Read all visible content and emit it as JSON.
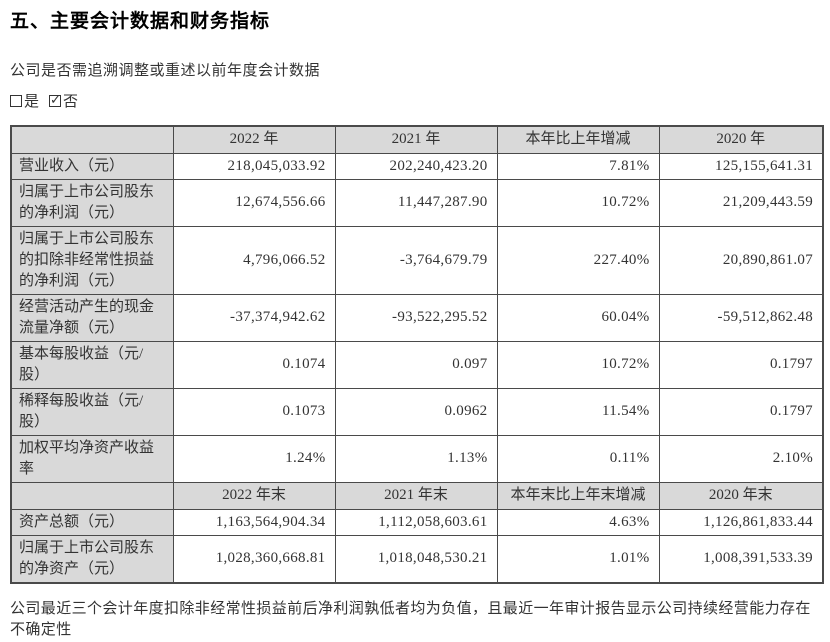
{
  "document": {
    "title": "五、主要会计数据和财务指标",
    "restatement_question": "公司是否需追溯调整或重述以前年度会计数据",
    "checkboxes": [
      {
        "label": "是",
        "checked": false
      },
      {
        "label": "否",
        "checked": true
      }
    ],
    "footnote": "公司最近三个会计年度扣除非经常性损益前后净利润孰低者均为负值，且最近一年审计报告显示公司持续经营能力存在不确定性"
  },
  "table": {
    "rows": [
      {
        "type": "header",
        "cells": [
          "",
          "2022 年",
          "2021 年",
          "本年比上年增减",
          "2020 年"
        ]
      },
      {
        "type": "data",
        "cells": [
          "营业收入（元）",
          "218,045,033.92",
          "202,240,423.20",
          "7.81%",
          "125,155,641.31"
        ]
      },
      {
        "type": "data",
        "cells": [
          "归属于上市公司股东的净利润（元）",
          "12,674,556.66",
          "11,447,287.90",
          "10.72%",
          "21,209,443.59"
        ]
      },
      {
        "type": "data",
        "cells": [
          "归属于上市公司股东的扣除非经常性损益的净利润（元）",
          "4,796,066.52",
          "-3,764,679.79",
          "227.40%",
          "20,890,861.07"
        ]
      },
      {
        "type": "data",
        "cells": [
          "经营活动产生的现金流量净额（元）",
          "-37,374,942.62",
          "-93,522,295.52",
          "60.04%",
          "-59,512,862.48"
        ]
      },
      {
        "type": "data",
        "cells": [
          "基本每股收益（元/股）",
          "0.1074",
          "0.097",
          "10.72%",
          "0.1797"
        ]
      },
      {
        "type": "data",
        "cells": [
          "稀释每股收益（元/股）",
          "0.1073",
          "0.0962",
          "11.54%",
          "0.1797"
        ]
      },
      {
        "type": "data",
        "cells": [
          "加权平均净资产收益率",
          "1.24%",
          "1.13%",
          "0.11%",
          "2.10%"
        ]
      },
      {
        "type": "header",
        "cells": [
          "",
          "2022 年末",
          "2021 年末",
          "本年末比上年末增减",
          "2020 年末"
        ]
      },
      {
        "type": "data",
        "cells": [
          "资产总额（元）",
          "1,163,564,904.34",
          "1,112,058,603.61",
          "4.63%",
          "1,126,861,833.44"
        ]
      },
      {
        "type": "data",
        "cells": [
          "归属于上市公司股东的净资产（元）",
          "1,028,360,668.81",
          "1,018,048,530.21",
          "1.01%",
          "1,008,391,533.39"
        ]
      }
    ]
  },
  "colors": {
    "header_bg": "#d9d9d9",
    "border": "#4a4a4a",
    "text": "#333333"
  }
}
